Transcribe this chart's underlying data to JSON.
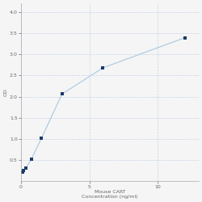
{
  "x": [
    0.047,
    0.094,
    0.188,
    0.375,
    0.75,
    1.5,
    3.0,
    6.0,
    12.0
  ],
  "y": [
    0.21,
    0.225,
    0.26,
    0.32,
    0.52,
    1.02,
    2.06,
    2.68,
    3.39
  ],
  "line_color": "#a8c8e0",
  "marker_color": "#1a3a6b",
  "marker_size": 3,
  "xlabel_line1": "Mouse CART",
  "xlabel_line2": "Concentration (ng/ml)",
  "ylabel": "OD",
  "xlim": [
    0,
    13
  ],
  "ylim": [
    0,
    4.2
  ],
  "yticks": [
    0.5,
    1,
    1.5,
    2,
    2.5,
    3,
    3.5,
    4
  ],
  "xticks": [
    0,
    5,
    10
  ],
  "xtick_labels": [
    "0",
    "5",
    "10"
  ],
  "grid_color": "#c8d4e8",
  "background_color": "#f5f5f5",
  "tick_fontsize": 4.5,
  "label_fontsize": 4.5,
  "figsize": [
    2.5,
    2.5
  ],
  "dpi": 100
}
